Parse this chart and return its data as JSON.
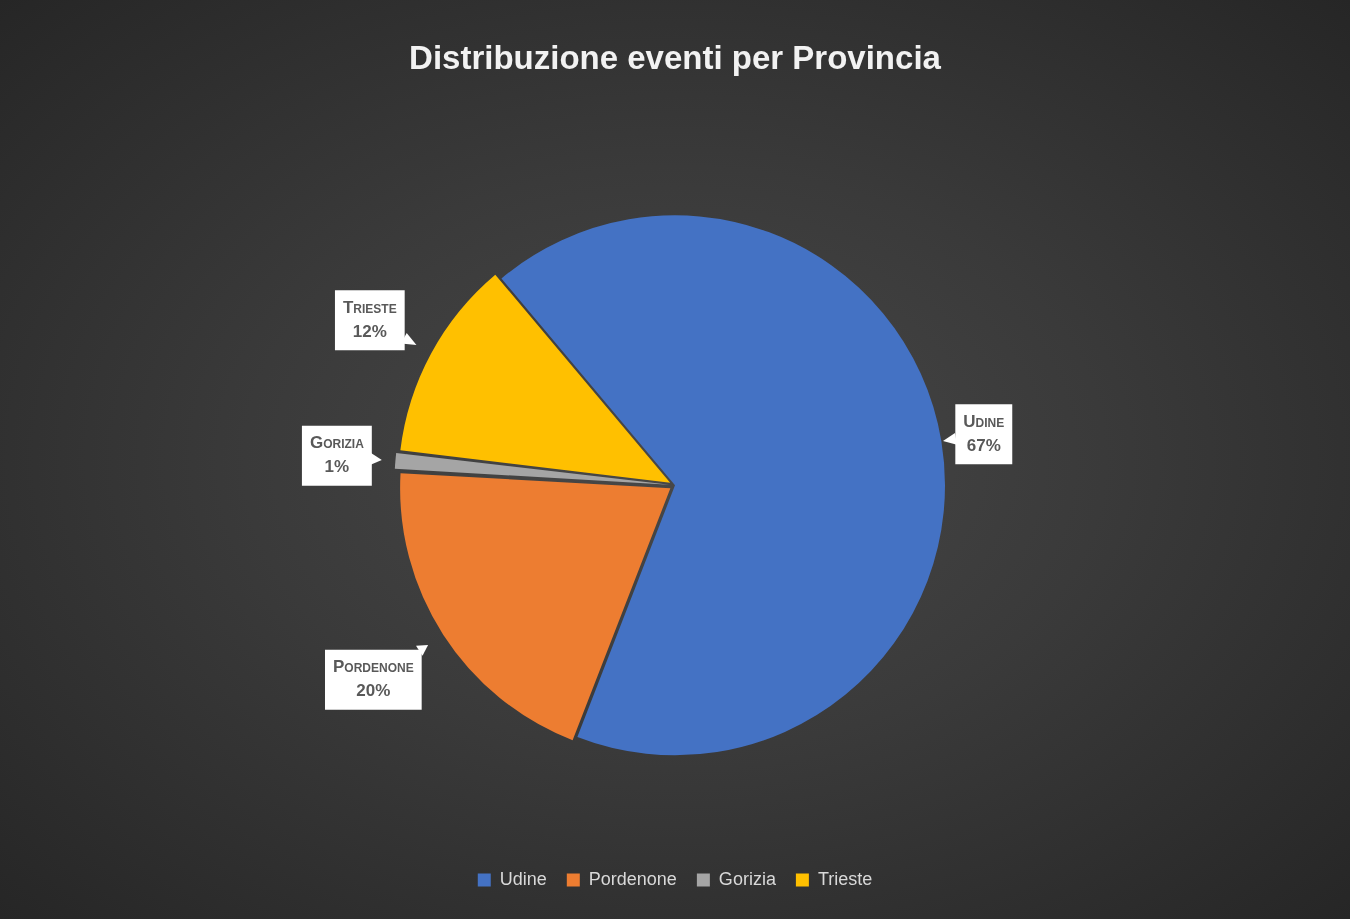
{
  "chart_data": {
    "type": "pie",
    "title": "Distribuzione eventi per Provincia",
    "categories": [
      "Udine",
      "Pordenone",
      "Gorizia",
      "Trieste"
    ],
    "values": [
      67,
      20,
      1,
      12
    ],
    "colors": [
      "#4472c4",
      "#ed7d31",
      "#a5a5a5",
      "#ffc000"
    ],
    "value_labels": [
      "67%",
      "20%",
      "1%",
      "12%"
    ],
    "legend": "bottom"
  }
}
